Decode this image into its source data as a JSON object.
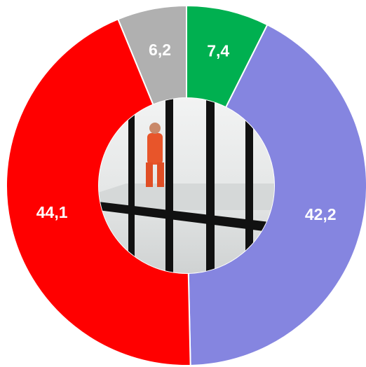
{
  "chart_data": {
    "type": "donut",
    "values": [
      7.4,
      42.2,
      44.1,
      6.2
    ],
    "value_labels": [
      "7,4",
      "42,2",
      "44,1",
      "6,2"
    ],
    "colors": [
      "#00b050",
      "#8585e0",
      "#ff0000",
      "#b0b0b0"
    ]
  }
}
